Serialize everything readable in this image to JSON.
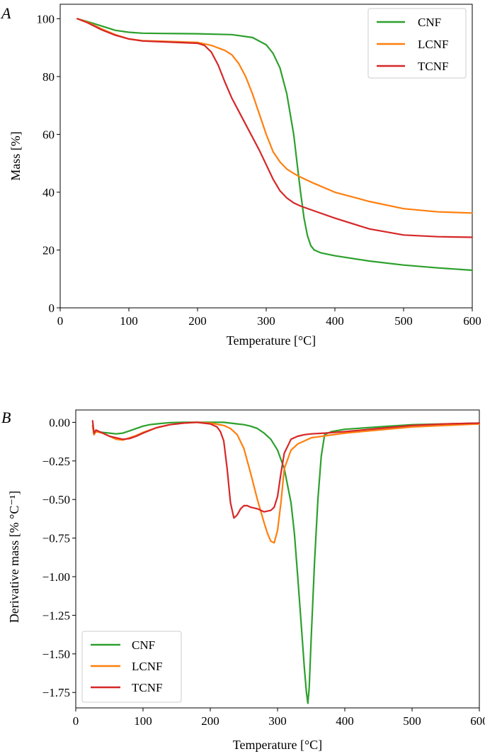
{
  "figure": {
    "panel_a_label": "A",
    "panel_b_label": "B"
  },
  "colors": {
    "CNF": "#2ca02c",
    "LCNF": "#ff7f0e",
    "TCNF": "#d62728",
    "frame": "#000000",
    "legend_border": "#cccccc"
  },
  "chart_data": [
    {
      "id": "A",
      "type": "line",
      "xlabel": "Temperature [°C]",
      "ylabel": "Mass [%]",
      "xlim": [
        0,
        600
      ],
      "ylim": [
        0,
        105
      ],
      "xticks": [
        0,
        100,
        200,
        300,
        400,
        500,
        600
      ],
      "yticks": [
        0,
        20,
        40,
        60,
        80,
        100
      ],
      "grid": false,
      "legend": "top-right",
      "series": [
        {
          "name": "CNF",
          "color": "#2ca02c",
          "x": [
            25,
            40,
            60,
            80,
            100,
            120,
            150,
            200,
            250,
            280,
            300,
            310,
            320,
            330,
            340,
            345,
            350,
            355,
            360,
            365,
            370,
            380,
            400,
            450,
            500,
            550,
            600
          ],
          "y": [
            100,
            99,
            97.5,
            96,
            95.3,
            95,
            94.9,
            94.8,
            94.5,
            93.5,
            91,
            88,
            83,
            74,
            60,
            50,
            40,
            31,
            25,
            21.5,
            20,
            19,
            18,
            16.2,
            14.8,
            13.8,
            13
          ]
        },
        {
          "name": "LCNF",
          "color": "#ff7f0e",
          "x": [
            25,
            40,
            60,
            80,
            100,
            120,
            150,
            200,
            220,
            240,
            250,
            260,
            270,
            280,
            290,
            300,
            310,
            320,
            330,
            340,
            350,
            370,
            400,
            450,
            500,
            550,
            600
          ],
          "y": [
            100,
            98.8,
            96.5,
            94.5,
            93,
            92.4,
            92.2,
            91.8,
            90.8,
            89,
            87.5,
            84.5,
            80,
            74,
            67,
            60,
            54,
            50.5,
            48,
            46.5,
            45.2,
            43,
            40,
            36.8,
            34.3,
            33.2,
            32.8
          ]
        },
        {
          "name": "TCNF",
          "color": "#d62728",
          "x": [
            25,
            40,
            60,
            80,
            100,
            120,
            150,
            200,
            210,
            220,
            230,
            240,
            250,
            260,
            270,
            280,
            290,
            300,
            310,
            320,
            330,
            340,
            350,
            370,
            400,
            450,
            500,
            550,
            600
          ],
          "y": [
            100,
            98.6,
            96.2,
            94.3,
            93,
            92.3,
            92,
            91.5,
            90.8,
            88.5,
            84,
            78,
            72.5,
            68,
            63.5,
            59,
            54.5,
            49.5,
            44.5,
            40.5,
            38,
            36.3,
            35.2,
            33.5,
            31,
            27.3,
            25.2,
            24.6,
            24.4
          ]
        }
      ]
    },
    {
      "id": "B",
      "type": "line",
      "xlabel": "Temperature [°C]",
      "ylabel": "Derivative mass [% °C⁻¹]",
      "xlim": [
        0,
        600
      ],
      "ylim": [
        -1.85,
        0.08
      ],
      "xticks": [
        0,
        100,
        200,
        300,
        400,
        500,
        600
      ],
      "yticks": [
        0.0,
        -0.25,
        -0.5,
        -0.75,
        -1.0,
        -1.25,
        -1.5,
        -1.75
      ],
      "ytick_labels": [
        "0.00",
        "−0.25",
        "−0.50",
        "−0.75",
        "−1.00",
        "−1.25",
        "−1.50",
        "−1.75"
      ],
      "grid": false,
      "legend": "bottom-left",
      "series": [
        {
          "name": "CNF",
          "color": "#2ca02c",
          "x": [
            25,
            27,
            30,
            40,
            50,
            60,
            70,
            80,
            90,
            100,
            110,
            120,
            140,
            160,
            180,
            200,
            220,
            240,
            250,
            260,
            270,
            280,
            290,
            300,
            310,
            320,
            325,
            330,
            335,
            340,
            343,
            345,
            347,
            350,
            355,
            360,
            365,
            370,
            380,
            400,
            450,
            500,
            550,
            600
          ],
          "y": [
            -0.02,
            -0.08,
            -0.06,
            -0.065,
            -0.07,
            -0.075,
            -0.07,
            -0.055,
            -0.04,
            -0.025,
            -0.015,
            -0.01,
            -0.002,
            0,
            0,
            0,
            0,
            -0.01,
            -0.015,
            -0.025,
            -0.04,
            -0.07,
            -0.11,
            -0.18,
            -0.3,
            -0.52,
            -0.72,
            -1.0,
            -1.3,
            -1.6,
            -1.75,
            -1.82,
            -1.72,
            -1.4,
            -0.9,
            -0.5,
            -0.22,
            -0.08,
            -0.06,
            -0.045,
            -0.03,
            -0.015,
            -0.01,
            -0.005
          ]
        },
        {
          "name": "LCNF",
          "color": "#ff7f0e",
          "x": [
            25,
            27,
            30,
            40,
            50,
            60,
            70,
            80,
            90,
            100,
            120,
            140,
            160,
            180,
            200,
            220,
            230,
            240,
            250,
            260,
            270,
            280,
            285,
            290,
            295,
            300,
            305,
            310,
            320,
            330,
            350,
            400,
            450,
            500,
            550,
            600
          ],
          "y": [
            -0.02,
            -0.08,
            -0.06,
            -0.07,
            -0.09,
            -0.11,
            -0.115,
            -0.1,
            -0.085,
            -0.065,
            -0.035,
            -0.015,
            -0.005,
            0,
            -0.005,
            -0.02,
            -0.04,
            -0.08,
            -0.17,
            -0.33,
            -0.5,
            -0.65,
            -0.72,
            -0.77,
            -0.78,
            -0.7,
            -0.52,
            -0.3,
            -0.18,
            -0.14,
            -0.1,
            -0.07,
            -0.05,
            -0.03,
            -0.02,
            -0.01
          ]
        },
        {
          "name": "TCNF",
          "color": "#d62728",
          "x": [
            25,
            27,
            30,
            40,
            50,
            60,
            70,
            80,
            90,
            100,
            120,
            140,
            160,
            180,
            200,
            210,
            215,
            220,
            225,
            230,
            235,
            240,
            245,
            250,
            255,
            260,
            270,
            280,
            290,
            295,
            300,
            305,
            310,
            320,
            330,
            340,
            350,
            370,
            400,
            450,
            500,
            550,
            600
          ],
          "y": [
            0.01,
            -0.07,
            -0.05,
            -0.07,
            -0.09,
            -0.1,
            -0.11,
            -0.105,
            -0.09,
            -0.07,
            -0.035,
            -0.015,
            -0.005,
            0,
            -0.01,
            -0.03,
            -0.06,
            -0.12,
            -0.3,
            -0.52,
            -0.62,
            -0.6,
            -0.56,
            -0.54,
            -0.54,
            -0.55,
            -0.56,
            -0.58,
            -0.57,
            -0.55,
            -0.48,
            -0.33,
            -0.2,
            -0.11,
            -0.09,
            -0.08,
            -0.075,
            -0.07,
            -0.06,
            -0.04,
            -0.02,
            -0.01,
            -0.005
          ]
        }
      ]
    }
  ]
}
